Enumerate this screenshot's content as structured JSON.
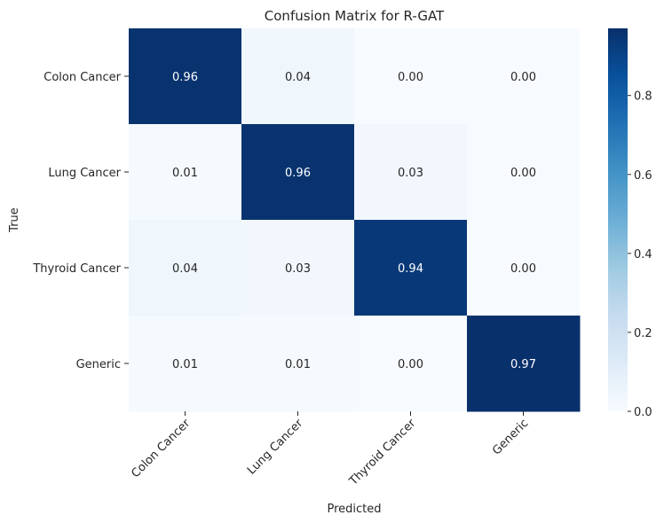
{
  "chart_data": {
    "type": "heatmap",
    "title": "Confusion Matrix for R-GAT",
    "xlabel": "Predicted",
    "ylabel": "True",
    "x_categories": [
      "Colon Cancer",
      "Lung Cancer",
      "Thyroid Cancer",
      "Generic"
    ],
    "y_categories": [
      "Colon Cancer",
      "Lung Cancer",
      "Thyroid Cancer",
      "Generic"
    ],
    "values": [
      [
        0.96,
        0.04,
        0.0,
        0.0
      ],
      [
        0.01,
        0.96,
        0.03,
        0.0
      ],
      [
        0.04,
        0.03,
        0.94,
        0.0
      ],
      [
        0.01,
        0.01,
        0.0,
        0.97
      ]
    ],
    "cell_labels": [
      [
        "0.96",
        "0.04",
        "0.00",
        "0.00"
      ],
      [
        "0.01",
        "0.96",
        "0.03",
        "0.00"
      ],
      [
        "0.04",
        "0.03",
        "0.94",
        "0.00"
      ],
      [
        "0.01",
        "0.01",
        "0.00",
        "0.97"
      ]
    ],
    "colormap": "Blues",
    "color_range": [
      0.0,
      0.97
    ],
    "colorbar_ticks": [
      0.0,
      0.2,
      0.4,
      0.6,
      0.8
    ],
    "colorbar_tick_labels": [
      "0.0",
      "0.2",
      "0.4",
      "0.6",
      "0.8"
    ],
    "colorbar_placement": "right",
    "grid": false,
    "x_tick_rotation_deg": 45
  }
}
